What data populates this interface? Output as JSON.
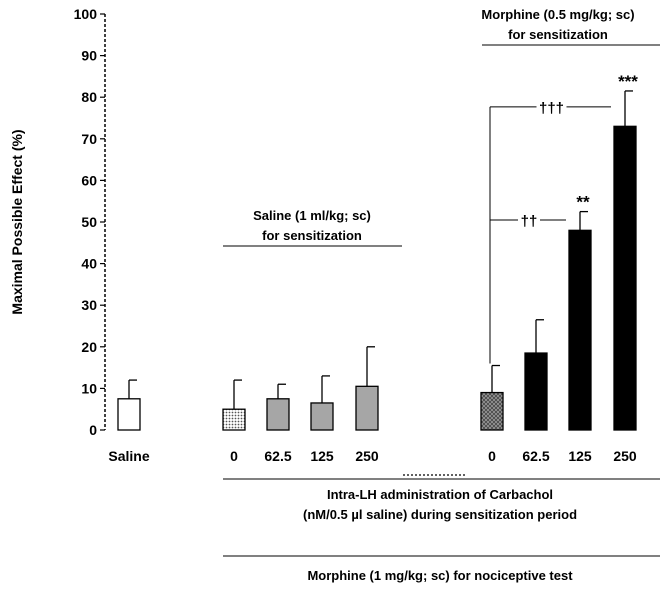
{
  "chart_data": {
    "type": "bar",
    "ylabel": "Maximal Possible Effect (%)",
    "ylim": [
      0,
      100
    ],
    "yticks": [
      "0",
      "10",
      "20",
      "30",
      "40",
      "50",
      "60",
      "70",
      "80",
      "90",
      "100"
    ],
    "grid": false,
    "categories": [
      "Saline",
      "0",
      "62.5",
      "125",
      "250",
      "0",
      "62.5",
      "125",
      "250"
    ],
    "values": [
      7.5,
      5,
      7.5,
      6.5,
      10.5,
      9,
      18.5,
      48,
      73
    ],
    "errors": [
      4.5,
      7,
      3.5,
      6.5,
      9.5,
      6.5,
      8,
      4.5,
      8.5
    ],
    "colors": [
      "#ffffff",
      "#cccccc",
      "#a6a6a6",
      "#a6a6a6",
      "#a6a6a6",
      "#bbbbbb",
      "#000000",
      "#000000",
      "#000000"
    ],
    "significance": [
      "",
      "",
      "",
      "",
      "",
      "",
      "",
      "**",
      "***"
    ],
    "comparisons": [
      {
        "from": 5,
        "to": 7,
        "label": "††"
      },
      {
        "from": 5,
        "to": 8,
        "label": "†††"
      }
    ],
    "group_labels": {
      "saline": [
        "Saline (1 ml/kg; sc)",
        "for sensitization"
      ],
      "morphine": [
        "Morphine (0.5 mg/kg; sc)",
        "for sensitization"
      ]
    },
    "xlabel_lines": [
      "Intra-LH administration of Carbachol",
      "(nM/0.5 µl saline) during sensitization period"
    ],
    "bottom_label": "Morphine (1 mg/kg; sc) for nociceptive test"
  }
}
